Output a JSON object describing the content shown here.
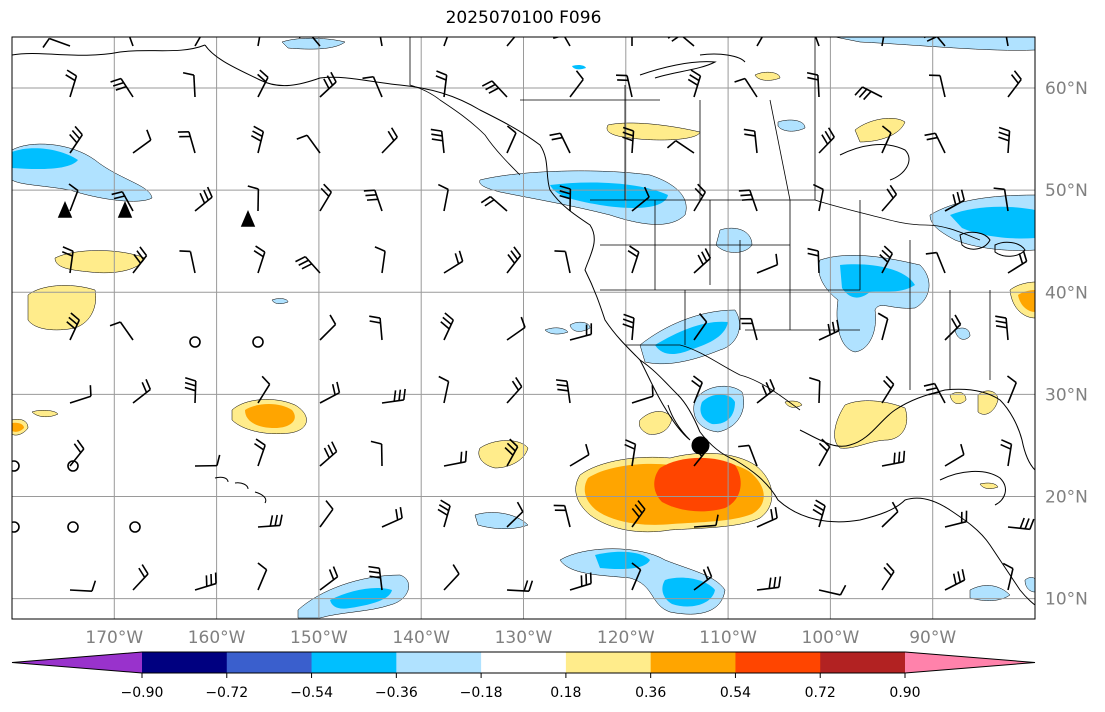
{
  "title": "2025070100 F096",
  "map": {
    "projection": "PlateCarree",
    "lon_range": [
      -180,
      -80
    ],
    "lat_range": [
      8,
      65
    ],
    "gridlines": true,
    "lat_labels": [
      "60°N",
      "50°N",
      "40°N",
      "30°N",
      "20°N",
      "10°N"
    ],
    "lat_values": [
      60,
      50,
      40,
      30,
      20,
      10
    ],
    "lon_labels": [
      "170°W",
      "160°W",
      "150°W",
      "140°W",
      "130°W",
      "120°W",
      "110°W",
      "100°W",
      "90°W"
    ],
    "lon_values": [
      -170,
      -160,
      -150,
      -140,
      -130,
      -120,
      -110,
      -100,
      -90
    ],
    "marker": {
      "lon": -112.7,
      "lat": 25.0,
      "description": "storm center marker"
    }
  },
  "colorbar": {
    "extend": "both",
    "boundaries": [
      -0.9,
      -0.72,
      -0.54,
      -0.36,
      -0.18,
      0.18,
      0.36,
      0.54,
      0.72,
      0.9
    ],
    "tick_labels": [
      "−0.90",
      "−0.72",
      "−0.54",
      "−0.36",
      "−0.18",
      "0.18",
      "0.36",
      "0.54",
      "0.72",
      "0.90"
    ],
    "colors": [
      "#9932cc",
      "#000080",
      "#3a5fcd",
      "#00bfff",
      "#b0e2ff",
      "#ffffff",
      "#ffec8b",
      "#ffa500",
      "#ff4500",
      "#b22222",
      "#ff82ab"
    ]
  },
  "colors": {
    "grid": "#9a9a9a",
    "coast": "#000000",
    "land": "#ffffff",
    "ocean": "#ffffff"
  }
}
